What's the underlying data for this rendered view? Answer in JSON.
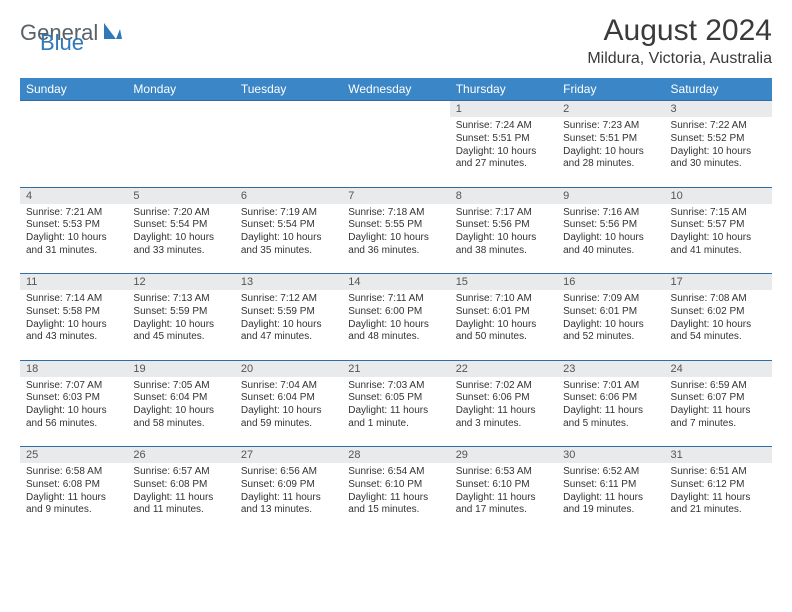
{
  "logo": {
    "textGeneral": "General",
    "textBlue": "Blue"
  },
  "title": "August 2024",
  "location": "Mildura, Victoria, Australia",
  "colors": {
    "headerBg": "#3b86c6",
    "headerText": "#ffffff",
    "dayNumBg": "#e9eaec",
    "borderTop": "#2f6da3",
    "bodyText": "#333333",
    "titleText": "#3a3a3a",
    "logoGray": "#5a6268",
    "logoBlue": "#2f79b9"
  },
  "weekdays": [
    "Sunday",
    "Monday",
    "Tuesday",
    "Wednesday",
    "Thursday",
    "Friday",
    "Saturday"
  ],
  "weeks": [
    [
      null,
      null,
      null,
      null,
      {
        "d": "1",
        "r": "7:24 AM",
        "s": "5:51 PM",
        "dl": "10 hours and 27 minutes."
      },
      {
        "d": "2",
        "r": "7:23 AM",
        "s": "5:51 PM",
        "dl": "10 hours and 28 minutes."
      },
      {
        "d": "3",
        "r": "7:22 AM",
        "s": "5:52 PM",
        "dl": "10 hours and 30 minutes."
      }
    ],
    [
      {
        "d": "4",
        "r": "7:21 AM",
        "s": "5:53 PM",
        "dl": "10 hours and 31 minutes."
      },
      {
        "d": "5",
        "r": "7:20 AM",
        "s": "5:54 PM",
        "dl": "10 hours and 33 minutes."
      },
      {
        "d": "6",
        "r": "7:19 AM",
        "s": "5:54 PM",
        "dl": "10 hours and 35 minutes."
      },
      {
        "d": "7",
        "r": "7:18 AM",
        "s": "5:55 PM",
        "dl": "10 hours and 36 minutes."
      },
      {
        "d": "8",
        "r": "7:17 AM",
        "s": "5:56 PM",
        "dl": "10 hours and 38 minutes."
      },
      {
        "d": "9",
        "r": "7:16 AM",
        "s": "5:56 PM",
        "dl": "10 hours and 40 minutes."
      },
      {
        "d": "10",
        "r": "7:15 AM",
        "s": "5:57 PM",
        "dl": "10 hours and 41 minutes."
      }
    ],
    [
      {
        "d": "11",
        "r": "7:14 AM",
        "s": "5:58 PM",
        "dl": "10 hours and 43 minutes."
      },
      {
        "d": "12",
        "r": "7:13 AM",
        "s": "5:59 PM",
        "dl": "10 hours and 45 minutes."
      },
      {
        "d": "13",
        "r": "7:12 AM",
        "s": "5:59 PM",
        "dl": "10 hours and 47 minutes."
      },
      {
        "d": "14",
        "r": "7:11 AM",
        "s": "6:00 PM",
        "dl": "10 hours and 48 minutes."
      },
      {
        "d": "15",
        "r": "7:10 AM",
        "s": "6:01 PM",
        "dl": "10 hours and 50 minutes."
      },
      {
        "d": "16",
        "r": "7:09 AM",
        "s": "6:01 PM",
        "dl": "10 hours and 52 minutes."
      },
      {
        "d": "17",
        "r": "7:08 AM",
        "s": "6:02 PM",
        "dl": "10 hours and 54 minutes."
      }
    ],
    [
      {
        "d": "18",
        "r": "7:07 AM",
        "s": "6:03 PM",
        "dl": "10 hours and 56 minutes."
      },
      {
        "d": "19",
        "r": "7:05 AM",
        "s": "6:04 PM",
        "dl": "10 hours and 58 minutes."
      },
      {
        "d": "20",
        "r": "7:04 AM",
        "s": "6:04 PM",
        "dl": "10 hours and 59 minutes."
      },
      {
        "d": "21",
        "r": "7:03 AM",
        "s": "6:05 PM",
        "dl": "11 hours and 1 minute."
      },
      {
        "d": "22",
        "r": "7:02 AM",
        "s": "6:06 PM",
        "dl": "11 hours and 3 minutes."
      },
      {
        "d": "23",
        "r": "7:01 AM",
        "s": "6:06 PM",
        "dl": "11 hours and 5 minutes."
      },
      {
        "d": "24",
        "r": "6:59 AM",
        "s": "6:07 PM",
        "dl": "11 hours and 7 minutes."
      }
    ],
    [
      {
        "d": "25",
        "r": "6:58 AM",
        "s": "6:08 PM",
        "dl": "11 hours and 9 minutes."
      },
      {
        "d": "26",
        "r": "6:57 AM",
        "s": "6:08 PM",
        "dl": "11 hours and 11 minutes."
      },
      {
        "d": "27",
        "r": "6:56 AM",
        "s": "6:09 PM",
        "dl": "11 hours and 13 minutes."
      },
      {
        "d": "28",
        "r": "6:54 AM",
        "s": "6:10 PM",
        "dl": "11 hours and 15 minutes."
      },
      {
        "d": "29",
        "r": "6:53 AM",
        "s": "6:10 PM",
        "dl": "11 hours and 17 minutes."
      },
      {
        "d": "30",
        "r": "6:52 AM",
        "s": "6:11 PM",
        "dl": "11 hours and 19 minutes."
      },
      {
        "d": "31",
        "r": "6:51 AM",
        "s": "6:12 PM",
        "dl": "11 hours and 21 minutes."
      }
    ]
  ],
  "labels": {
    "sunrise": "Sunrise:",
    "sunset": "Sunset:",
    "daylight": "Daylight:"
  }
}
